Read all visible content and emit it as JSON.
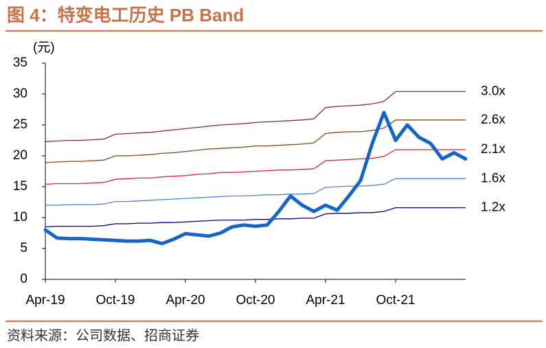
{
  "chart_data": {
    "type": "line",
    "title": "图 4：特变电工历史 PB Band",
    "y_label": "(元)",
    "source": "资料来源：公司数据、招商证券",
    "categories": [
      "Apr-19",
      null,
      null,
      null,
      null,
      null,
      "Oct-19",
      null,
      null,
      null,
      null,
      null,
      "Apr-20",
      null,
      null,
      null,
      null,
      null,
      "Oct-20",
      null,
      null,
      null,
      null,
      null,
      "Apr-21",
      null,
      null,
      null,
      null,
      null,
      "Oct-21",
      null,
      null,
      null,
      null,
      null,
      null
    ],
    "ylim": [
      0,
      35
    ],
    "yticks": [
      0,
      5,
      10,
      15,
      20,
      25,
      30,
      35
    ],
    "series": [
      {
        "name": "3.0x",
        "color": "#8b2252",
        "values": [
          22.3,
          22.4,
          22.5,
          22.5,
          22.6,
          22.7,
          23.5,
          23.6,
          23.7,
          23.8,
          24.0,
          24.2,
          24.4,
          24.6,
          24.8,
          25.0,
          25.1,
          25.2,
          25.4,
          25.5,
          25.6,
          25.7,
          25.8,
          26.0,
          27.8,
          28.0,
          28.1,
          28.2,
          28.4,
          28.8,
          30.4,
          30.4,
          30.4,
          30.4,
          30.4,
          30.4,
          30.4
        ]
      },
      {
        "name": "2.6x",
        "color": "#8b4513",
        "values": [
          18.9,
          19.0,
          19.1,
          19.1,
          19.2,
          19.3,
          20.0,
          20.0,
          20.1,
          20.2,
          20.4,
          20.5,
          20.7,
          20.9,
          21.1,
          21.2,
          21.3,
          21.4,
          21.6,
          21.6,
          21.7,
          21.8,
          21.9,
          22.1,
          23.6,
          23.8,
          23.9,
          23.9,
          24.1,
          24.5,
          25.8,
          25.8,
          25.8,
          25.8,
          25.8,
          25.8,
          25.8
        ]
      },
      {
        "name": "2.1x",
        "color": "#e0202a",
        "values": [
          15.4,
          15.5,
          15.5,
          15.5,
          15.6,
          15.7,
          16.2,
          16.3,
          16.4,
          16.4,
          16.6,
          16.7,
          16.8,
          17.0,
          17.1,
          17.3,
          17.3,
          17.4,
          17.5,
          17.6,
          17.7,
          17.7,
          17.8,
          17.9,
          19.2,
          19.3,
          19.4,
          19.5,
          19.6,
          19.9,
          21.0,
          21.0,
          21.0,
          21.0,
          21.0,
          21.0,
          21.0
        ]
      },
      {
        "name": "1.6x",
        "color": "#4a7fd4",
        "values": [
          12.0,
          12.0,
          12.1,
          12.1,
          12.1,
          12.2,
          12.6,
          12.6,
          12.7,
          12.8,
          12.9,
          13.0,
          13.1,
          13.2,
          13.3,
          13.4,
          13.5,
          13.5,
          13.6,
          13.7,
          13.7,
          13.8,
          13.8,
          13.9,
          14.9,
          15.0,
          15.1,
          15.1,
          15.2,
          15.4,
          16.3,
          16.3,
          16.3,
          16.3,
          16.3,
          16.3,
          16.3
        ]
      },
      {
        "name": "1.2x",
        "color": "#000080",
        "values": [
          8.5,
          8.6,
          8.6,
          8.6,
          8.6,
          8.7,
          9.0,
          9.0,
          9.1,
          9.1,
          9.2,
          9.2,
          9.3,
          9.4,
          9.5,
          9.6,
          9.6,
          9.6,
          9.7,
          9.7,
          9.8,
          9.8,
          9.9,
          9.9,
          10.6,
          10.7,
          10.7,
          10.8,
          10.8,
          11.0,
          11.6,
          11.6,
          11.6,
          11.6,
          11.6,
          11.6,
          11.6
        ]
      }
    ],
    "price": {
      "color": "#1565c8",
      "values": [
        8.0,
        6.7,
        6.6,
        6.6,
        6.5,
        6.4,
        6.3,
        6.2,
        6.2,
        6.3,
        5.8,
        6.5,
        7.4,
        7.2,
        7.0,
        7.5,
        8.5,
        8.8,
        8.6,
        8.8,
        11.0,
        13.5,
        12.0,
        11.0,
        12.0,
        11.2,
        13.5,
        16.0,
        22.0,
        27.0,
        22.5,
        25.0,
        23.0,
        22.0,
        19.5,
        20.5,
        19.5
      ]
    }
  }
}
